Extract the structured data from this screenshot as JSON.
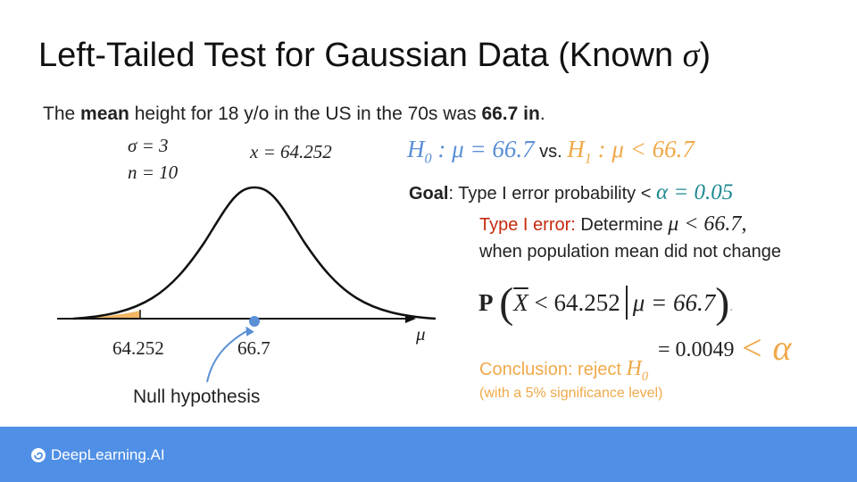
{
  "slide": {
    "title_text": "Left-Tailed Test for Gaussian Data (Known ",
    "title_sigma": "σ",
    "title_close": ")",
    "intro": {
      "part1": "The ",
      "mean": "mean",
      "part2": "  height for 18 y/o in the US in the 70s was ",
      "value": "66.7 in",
      "end": "."
    },
    "params": {
      "sigma": "σ = 3",
      "n": "n = 10"
    },
    "sample_mean": "x = 64.252",
    "hypotheses": {
      "h0_sym": "H",
      "h0_sub": "0",
      "h0_rest": " : μ = 66.7",
      "vs": " vs. ",
      "h1_sym": "H",
      "h1_sub": "1",
      "h1_rest": " : μ < 66.7"
    },
    "goal": {
      "label": "Goal",
      "text": ": Type I error probability < ",
      "alpha": "α = 0.05"
    },
    "type1": {
      "label": "Type I error:",
      "text": " Determine ",
      "math": "μ < 66.7",
      "comma": ",",
      "line2": "when population mean did not change"
    },
    "probability": {
      "P": "P",
      "xbar": "X",
      "lhs": " < 64.252",
      "rhs": "μ = 66.7",
      "trail": "."
    },
    "result": {
      "value": "= 0.0049",
      "lt_alpha": "< α"
    },
    "conclusion": {
      "text": "Conclusion: reject ",
      "h_sym": "H",
      "h_sub": "0",
      "significance": "(with a 5% significance level)"
    },
    "axis_labels": {
      "critical": "64.252",
      "mean": "66.7",
      "mu": "μ"
    },
    "null_label": "Null hypothesis"
  },
  "footer": {
    "brand": "DeepLearning.AI"
  },
  "colors": {
    "h0_blue": "#5b8fd6",
    "h1_orange": "#f0a94a",
    "alpha_teal": "#1f8a92",
    "type1_red": "#c52a0f",
    "footer_blue": "#4f8fe6",
    "tail_fill": "#f0a94a",
    "dot_blue": "#5b8fd6"
  },
  "icons": {
    "brand_logo": "deeplearning-logo-icon"
  }
}
